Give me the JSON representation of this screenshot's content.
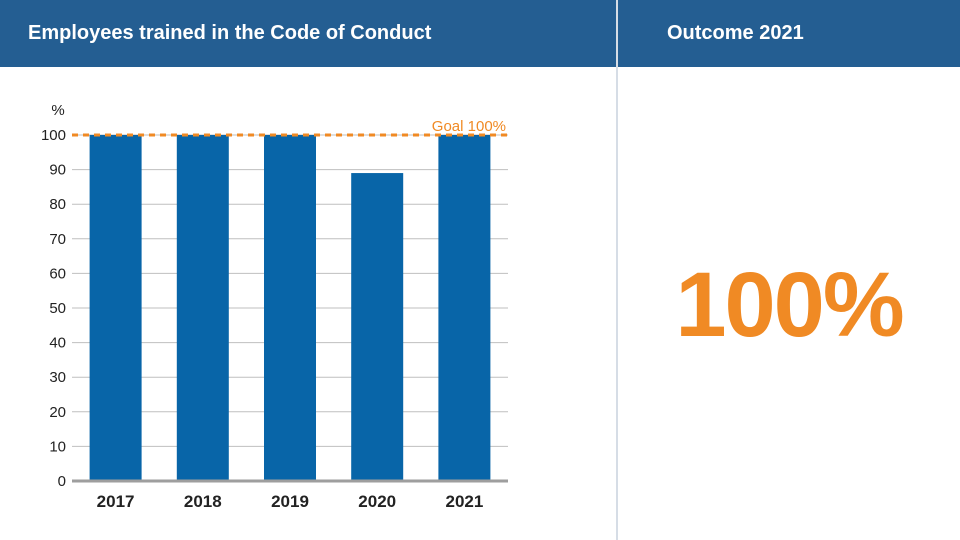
{
  "header": {
    "left_title": "Employees trained in the Code of Conduct",
    "right_title": "Outcome 2021"
  },
  "outcome": {
    "value": "100%"
  },
  "colors": {
    "header_bg": "#245e92",
    "bar": "#0865a8",
    "goal": "#f08a24",
    "grid": "#bfbfbf",
    "axis": "#9e9e9e"
  },
  "chart_data": {
    "type": "bar",
    "title": "Employees trained in the Code of Conduct",
    "ylabel": "%",
    "xlabel": "",
    "categories": [
      "2017",
      "2018",
      "2019",
      "2020",
      "2021"
    ],
    "values": [
      100,
      100,
      100,
      89,
      100
    ],
    "ylim": [
      0,
      100
    ],
    "yticks": [
      0,
      10,
      20,
      30,
      40,
      50,
      60,
      70,
      80,
      90,
      100
    ],
    "grid": true,
    "goal": {
      "value": 100,
      "label": "Goal 100%"
    }
  }
}
